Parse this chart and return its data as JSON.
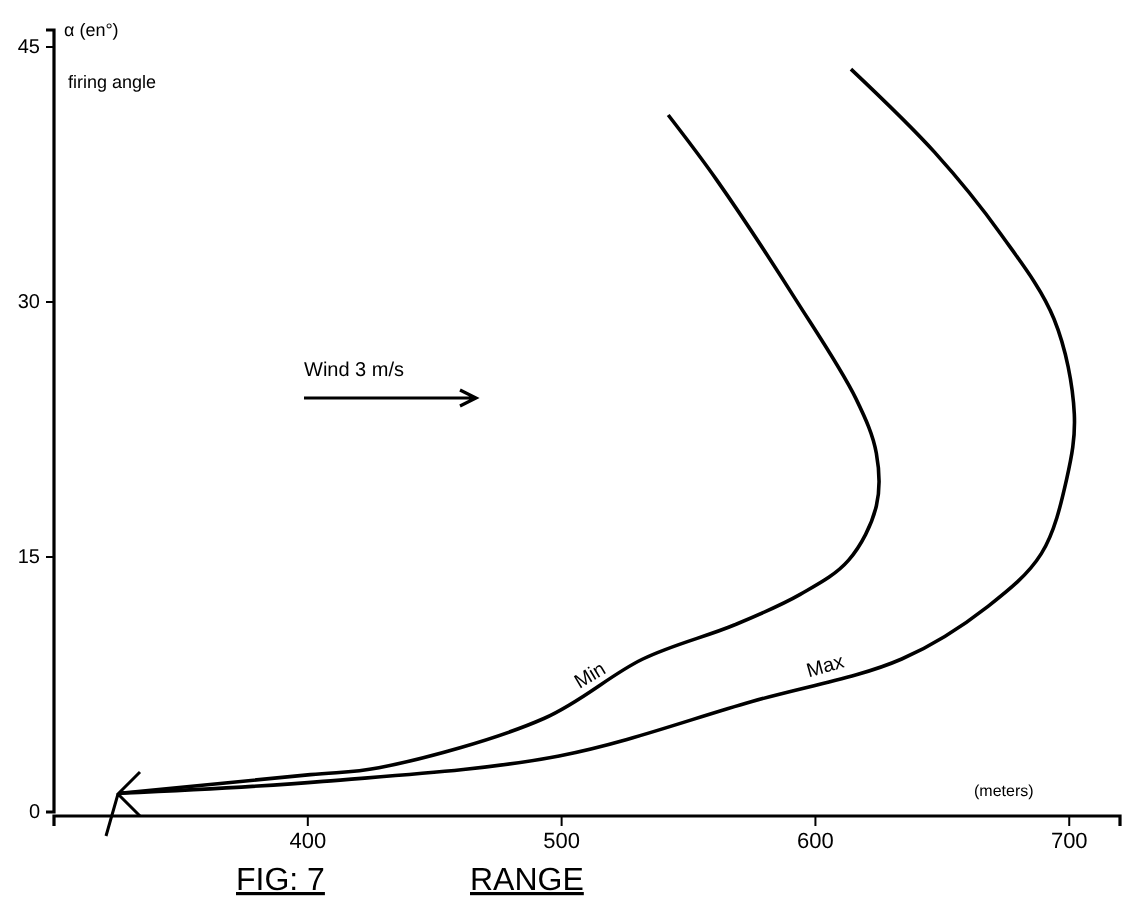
{
  "chart_data": {
    "type": "line",
    "title": "FIG: 7",
    "xlabel": "RANGE",
    "ylabel": "α (en°)",
    "annotations": [
      "firing angle",
      "Wind 3 m/s",
      "(meters)"
    ],
    "xlim": [
      300,
      720
    ],
    "xticks": [
      400,
      500,
      600,
      700
    ],
    "ylim": [
      0,
      46
    ],
    "yticks": [
      0,
      15,
      30,
      45
    ],
    "line_style": "solid",
    "grid": false,
    "series": [
      {
        "name": "Min",
        "color": "#000000",
        "x": [
          326,
          401,
          428,
          493,
          532,
          568,
          594,
          613,
          624,
          624,
          616,
          592,
          561,
          542
        ],
        "values": [
          1.1,
          2.2,
          2.6,
          5.5,
          9,
          11,
          12.8,
          14.8,
          18,
          21.1,
          24.3,
          30.2,
          37.2,
          41
        ]
      },
      {
        "name": "Max",
        "color": "#000000",
        "x": [
          326,
          406,
          499,
          575,
          634,
          668,
          689,
          699,
          702,
          694,
          673,
          647,
          614
        ],
        "values": [
          1.1,
          1.8,
          3.3,
          6.5,
          9,
          12.1,
          15.2,
          19.6,
          23.4,
          29,
          34,
          38.8,
          43.7
        ]
      }
    ]
  }
}
